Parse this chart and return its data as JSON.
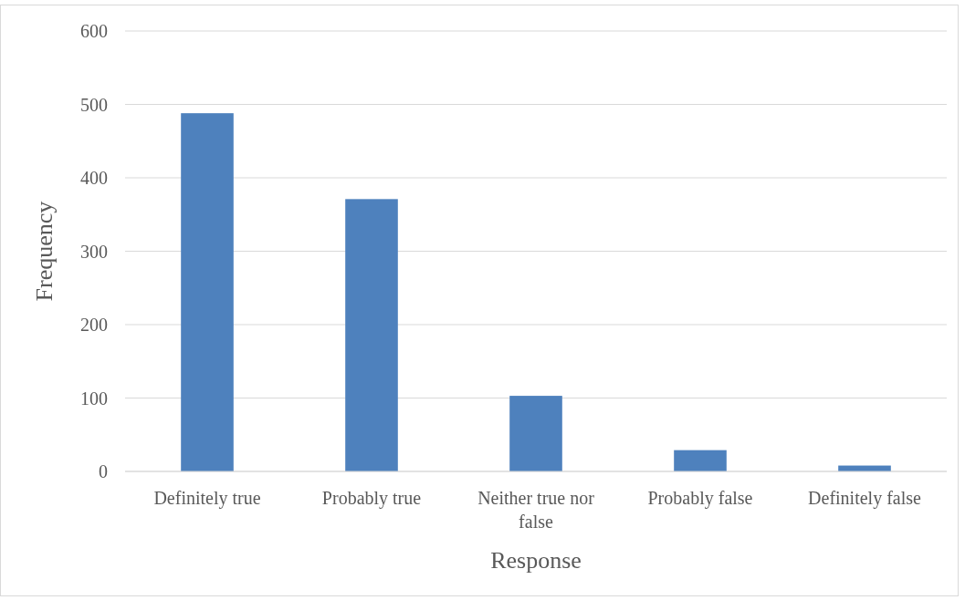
{
  "chart_data": {
    "type": "bar",
    "xlabel": "Response",
    "ylabel": "Frequency",
    "categories": [
      "Definitely true",
      "Probably true",
      "Neither true nor false",
      "Probably false",
      "Definitely false"
    ],
    "values": [
      488,
      371,
      103,
      29,
      8
    ],
    "color": "#4e81bd",
    "ylim": [
      0,
      600
    ],
    "yticks": [
      0,
      100,
      200,
      300,
      400,
      500,
      600
    ],
    "grid": "y"
  }
}
